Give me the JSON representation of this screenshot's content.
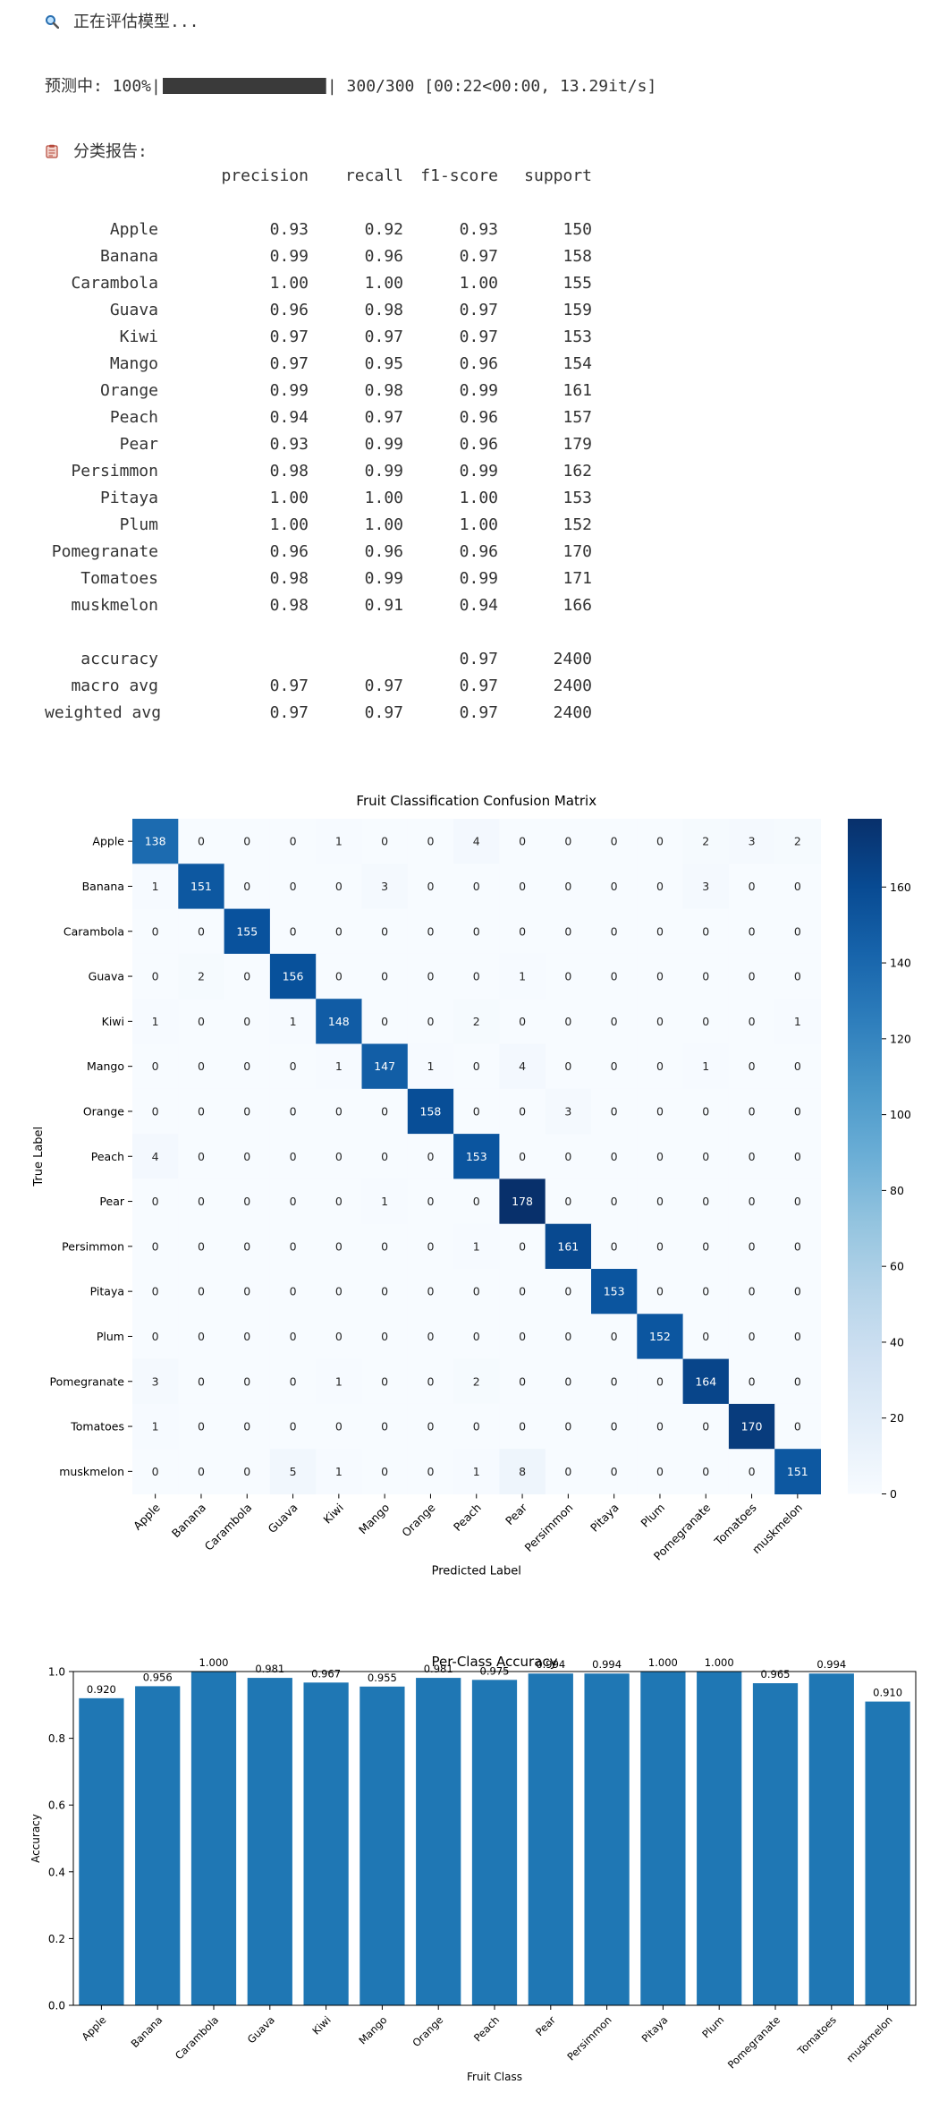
{
  "log": {
    "status_icon": "magnifier-icon",
    "status_text": "正在评估模型...",
    "progress_prefix": "预测中: 100%|",
    "progress_fraction": 1.0,
    "progress_suffix": "| 300/300 [00:22<00:00, 13.29it/s]",
    "report_icon": "clipboard-icon",
    "report_title": "分类报告:"
  },
  "report": {
    "headers": [
      "",
      "precision",
      "recall",
      "f1-score",
      "support"
    ],
    "rows": [
      [
        "Apple",
        "0.93",
        "0.92",
        "0.93",
        "150"
      ],
      [
        "Banana",
        "0.99",
        "0.96",
        "0.97",
        "158"
      ],
      [
        "Carambola",
        "1.00",
        "1.00",
        "1.00",
        "155"
      ],
      [
        "Guava",
        "0.96",
        "0.98",
        "0.97",
        "159"
      ],
      [
        "Kiwi",
        "0.97",
        "0.97",
        "0.97",
        "153"
      ],
      [
        "Mango",
        "0.97",
        "0.95",
        "0.96",
        "154"
      ],
      [
        "Orange",
        "0.99",
        "0.98",
        "0.99",
        "161"
      ],
      [
        "Peach",
        "0.94",
        "0.97",
        "0.96",
        "157"
      ],
      [
        "Pear",
        "0.93",
        "0.99",
        "0.96",
        "179"
      ],
      [
        "Persimmon",
        "0.98",
        "0.99",
        "0.99",
        "162"
      ],
      [
        "Pitaya",
        "1.00",
        "1.00",
        "1.00",
        "153"
      ],
      [
        "Plum",
        "1.00",
        "1.00",
        "1.00",
        "152"
      ],
      [
        "Pomegranate",
        "0.96",
        "0.96",
        "0.96",
        "170"
      ],
      [
        "Tomatoes",
        "0.98",
        "0.99",
        "0.99",
        "171"
      ],
      [
        "muskmelon",
        "0.98",
        "0.91",
        "0.94",
        "166"
      ]
    ],
    "summary": [
      [
        "accuracy",
        "",
        "",
        "0.97",
        "2400"
      ],
      [
        "macro avg",
        "0.97",
        "0.97",
        "0.97",
        "2400"
      ],
      [
        "weighted avg",
        "0.97",
        "0.97",
        "0.97",
        "2400"
      ]
    ]
  },
  "chart_data": [
    {
      "type": "heatmap",
      "title": "Fruit Classification Confusion Matrix",
      "xlabel": "Predicted Label",
      "ylabel": "True Label",
      "labels": [
        "Apple",
        "Banana",
        "Carambola",
        "Guava",
        "Kiwi",
        "Mango",
        "Orange",
        "Peach",
        "Pear",
        "Persimmon",
        "Pitaya",
        "Plum",
        "Pomegranate",
        "Tomatoes",
        "muskmelon"
      ],
      "matrix": [
        [
          138,
          0,
          0,
          0,
          1,
          0,
          0,
          4,
          0,
          0,
          0,
          0,
          2,
          3,
          2
        ],
        [
          1,
          151,
          0,
          0,
          0,
          3,
          0,
          0,
          0,
          0,
          0,
          0,
          3,
          0,
          0
        ],
        [
          0,
          0,
          155,
          0,
          0,
          0,
          0,
          0,
          0,
          0,
          0,
          0,
          0,
          0,
          0
        ],
        [
          0,
          2,
          0,
          156,
          0,
          0,
          0,
          0,
          1,
          0,
          0,
          0,
          0,
          0,
          0
        ],
        [
          1,
          0,
          0,
          1,
          148,
          0,
          0,
          2,
          0,
          0,
          0,
          0,
          0,
          0,
          1
        ],
        [
          0,
          0,
          0,
          0,
          1,
          147,
          1,
          0,
          4,
          0,
          0,
          0,
          1,
          0,
          0
        ],
        [
          0,
          0,
          0,
          0,
          0,
          0,
          158,
          0,
          0,
          3,
          0,
          0,
          0,
          0,
          0
        ],
        [
          4,
          0,
          0,
          0,
          0,
          0,
          0,
          153,
          0,
          0,
          0,
          0,
          0,
          0,
          0
        ],
        [
          0,
          0,
          0,
          0,
          0,
          1,
          0,
          0,
          178,
          0,
          0,
          0,
          0,
          0,
          0
        ],
        [
          0,
          0,
          0,
          0,
          0,
          0,
          0,
          1,
          0,
          161,
          0,
          0,
          0,
          0,
          0
        ],
        [
          0,
          0,
          0,
          0,
          0,
          0,
          0,
          0,
          0,
          0,
          153,
          0,
          0,
          0,
          0
        ],
        [
          0,
          0,
          0,
          0,
          0,
          0,
          0,
          0,
          0,
          0,
          0,
          152,
          0,
          0,
          0
        ],
        [
          3,
          0,
          0,
          0,
          1,
          0,
          0,
          2,
          0,
          0,
          0,
          0,
          164,
          0,
          0
        ],
        [
          1,
          0,
          0,
          0,
          0,
          0,
          0,
          0,
          0,
          0,
          0,
          0,
          0,
          170,
          0
        ],
        [
          0,
          0,
          0,
          5,
          1,
          0,
          0,
          1,
          8,
          0,
          0,
          0,
          0,
          0,
          151
        ]
      ],
      "colormap": "Blues",
      "colorbar_range": [
        0,
        178
      ],
      "colorbar_ticks": [
        0,
        20,
        40,
        60,
        80,
        100,
        120,
        140,
        160
      ]
    },
    {
      "type": "bar",
      "title": "Per-Class Accuracy",
      "xlabel": "Fruit Class",
      "ylabel": "Accuracy",
      "categories": [
        "Apple",
        "Banana",
        "Carambola",
        "Guava",
        "Kiwi",
        "Mango",
        "Orange",
        "Peach",
        "Pear",
        "Persimmon",
        "Pitaya",
        "Plum",
        "Pomegranate",
        "Tomatoes",
        "muskmelon"
      ],
      "values": [
        0.92,
        0.956,
        1.0,
        0.981,
        0.967,
        0.955,
        0.981,
        0.975,
        0.994,
        0.994,
        1.0,
        1.0,
        0.965,
        0.994,
        0.91
      ],
      "value_labels": [
        "0.920",
        "0.956",
        "1.000",
        "0.981",
        "0.967",
        "0.955",
        "0.981",
        "0.975",
        "0.994",
        "0.994",
        "1.000",
        "1.000",
        "0.965",
        "0.994",
        "0.910"
      ],
      "ylim": [
        0,
        1.0
      ],
      "yticks": [
        "0.0",
        "0.2",
        "0.4",
        "0.6",
        "0.8",
        "1.0"
      ],
      "bar_color": "#1f77b4",
      "grid": false
    }
  ]
}
